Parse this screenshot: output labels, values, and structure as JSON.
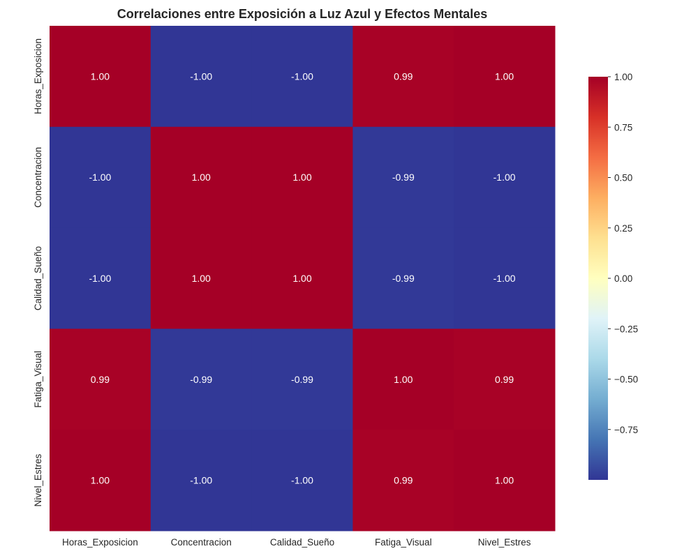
{
  "chart_data": {
    "type": "heatmap",
    "title": "Correlaciones entre Exposición a Luz Azul y Efectos Mentales",
    "xlabel": "",
    "ylabel": "",
    "x_categories": [
      "Horas_Exposicion",
      "Concentracion",
      "Calidad_Sueño",
      "Fatiga_Visual",
      "Nivel_Estres"
    ],
    "y_categories": [
      "Horas_Exposicion",
      "Concentracion",
      "Calidad_Sueño",
      "Fatiga_Visual",
      "Nivel_Estres"
    ],
    "values": [
      [
        1.0,
        -1.0,
        -1.0,
        0.99,
        1.0
      ],
      [
        -1.0,
        1.0,
        1.0,
        -0.99,
        -1.0
      ],
      [
        -1.0,
        1.0,
        1.0,
        -0.99,
        -1.0
      ],
      [
        0.99,
        -0.99,
        -0.99,
        1.0,
        0.99
      ],
      [
        1.0,
        -1.0,
        -1.0,
        0.99,
        1.0
      ]
    ],
    "value_labels": [
      [
        "1.00",
        "-1.00",
        "-1.00",
        "0.99",
        "1.00"
      ],
      [
        "-1.00",
        "1.00",
        "1.00",
        "-0.99",
        "-1.00"
      ],
      [
        "-1.00",
        "1.00",
        "1.00",
        "-0.99",
        "-1.00"
      ],
      [
        "0.99",
        "-0.99",
        "-0.99",
        "1.00",
        "0.99"
      ],
      [
        "1.00",
        "-1.00",
        "-1.00",
        "0.99",
        "1.00"
      ]
    ],
    "colormap": "RdYlBu_r",
    "color_range": [
      -1.0,
      1.0
    ],
    "colorbar": {
      "ticks": [
        1.0,
        0.75,
        0.5,
        0.25,
        0.0,
        -0.25,
        -0.5,
        -0.75
      ],
      "tick_labels": [
        "1.00",
        "0.75",
        "0.50",
        "0.25",
        "0.00",
        "−0.25",
        "−0.50",
        "−0.75"
      ],
      "range": [
        -1.0,
        1.0
      ],
      "placement": "right"
    },
    "grid": false,
    "annotated": true
  }
}
